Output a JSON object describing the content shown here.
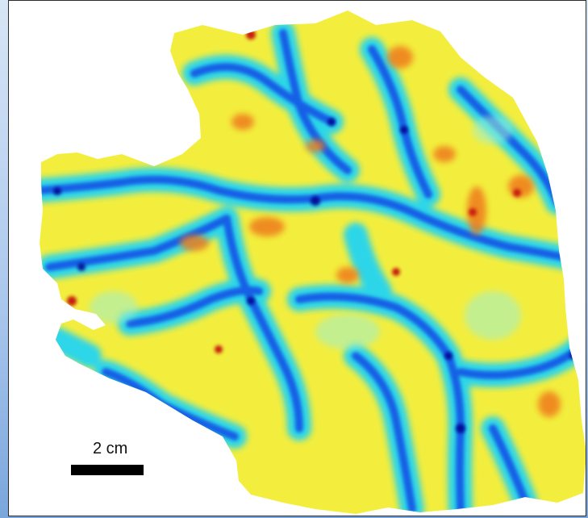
{
  "figure": {
    "scale_label": "2 cm",
    "colormap": [
      "#00008b",
      "#1a63e8",
      "#16c8f0",
      "#9cf0d2",
      "#f4f03c",
      "#f5b52e",
      "#ee7a1a",
      "#c81a0c"
    ],
    "background": "#ffffff",
    "page_border": "#2a2a2a"
  }
}
